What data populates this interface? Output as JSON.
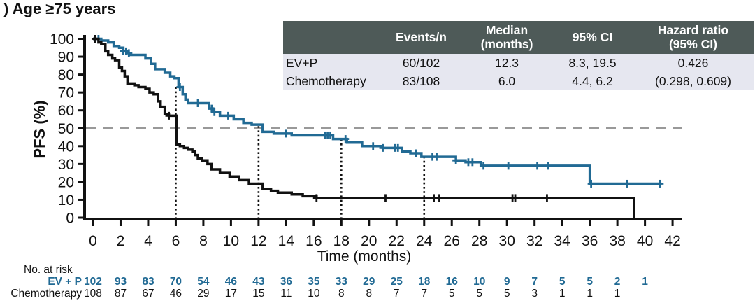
{
  "title": ") Age ≥75 years",
  "colors": {
    "accent": "#216a94",
    "ink": "#111111",
    "table_header_bg": "#4e5a58",
    "table_row_bg": "#e6e7f0",
    "dashed_line": "#999999"
  },
  "summary_table": {
    "headers": [
      "",
      "Events/n",
      "Median\n(months)",
      "95% CI",
      "Hazard ratio\n(95% CI)"
    ],
    "rows": [
      {
        "label": "EV+P",
        "events_n": "60/102",
        "median": "12.3",
        "ci": "8.3, 19.5",
        "hazard_ratio": "0.426"
      },
      {
        "label": "Chemotherapy",
        "events_n": "83/108",
        "median": "6.0",
        "ci": "4.4, 6.2",
        "hazard_ratio": "(0.298, 0.609)"
      }
    ]
  },
  "chart_data": {
    "type": "line",
    "subtype": "kaplan-meier-step",
    "title": "",
    "xlabel": "Time (months)",
    "ylabel": "PFS (%)",
    "xlim": [
      0,
      42
    ],
    "xtick_step": 2,
    "ylim": [
      0,
      100
    ],
    "ytick_step": 10,
    "grid": false,
    "reference_lines": {
      "horizontal_dashed_y": 50,
      "vertical_dotted": [
        {
          "x": 6,
          "top": 73
        },
        {
          "x": 12,
          "top": 52
        },
        {
          "x": 18,
          "top": 44
        },
        {
          "x": 24,
          "top": 34
        }
      ]
    },
    "series": [
      {
        "name": "EV+P",
        "color_key": "accent",
        "steps": [
          [
            0,
            100
          ],
          [
            0.6,
            99
          ],
          [
            1.1,
            98
          ],
          [
            1.5,
            96
          ],
          [
            1.9,
            95
          ],
          [
            2.2,
            93
          ],
          [
            2.5,
            92
          ],
          [
            2.7,
            91
          ],
          [
            3.8,
            89
          ],
          [
            4.2,
            86
          ],
          [
            4.5,
            83
          ],
          [
            5.2,
            81
          ],
          [
            5.6,
            79
          ],
          [
            5.9,
            78
          ],
          [
            6.2,
            73
          ],
          [
            6.5,
            69
          ],
          [
            6.7,
            66
          ],
          [
            6.9,
            64
          ],
          [
            8.4,
            61
          ],
          [
            8.7,
            59
          ],
          [
            9.2,
            57
          ],
          [
            10.2,
            55
          ],
          [
            10.9,
            53
          ],
          [
            11.5,
            52
          ],
          [
            12.3,
            48
          ],
          [
            13.1,
            47
          ],
          [
            14.4,
            46
          ],
          [
            17.4,
            44
          ],
          [
            18.4,
            42
          ],
          [
            19.5,
            40
          ],
          [
            21.0,
            39
          ],
          [
            22.4,
            37
          ],
          [
            23.0,
            36
          ],
          [
            23.8,
            34
          ],
          [
            26.3,
            32
          ],
          [
            27.0,
            31
          ],
          [
            28.1,
            29
          ],
          [
            36.0,
            19
          ],
          [
            41.2,
            19
          ]
        ],
        "censor_times": [
          0.4,
          2.2,
          2.4,
          2.6,
          6.3,
          7.6,
          8.6,
          8.8,
          9.8,
          14.0,
          16.8,
          17.0,
          17.2,
          18.3,
          20.3,
          21.0,
          21.9,
          22.1,
          23.4,
          24.6,
          24.9,
          26.3,
          27.2,
          27.5,
          28.3,
          30.1,
          32.2,
          33.0,
          36.1,
          38.7,
          41.1
        ]
      },
      {
        "name": "Chemotherapy",
        "color_key": "ink",
        "steps": [
          [
            0,
            100
          ],
          [
            0.4,
            98
          ],
          [
            0.6,
            97
          ],
          [
            0.9,
            93
          ],
          [
            1.1,
            91
          ],
          [
            1.4,
            89
          ],
          [
            1.6,
            88
          ],
          [
            1.9,
            84
          ],
          [
            2.1,
            82
          ],
          [
            2.3,
            79
          ],
          [
            2.5,
            75
          ],
          [
            3.0,
            74
          ],
          [
            3.3,
            73
          ],
          [
            3.8,
            72
          ],
          [
            4.1,
            70
          ],
          [
            4.4,
            69
          ],
          [
            4.7,
            65
          ],
          [
            4.9,
            62
          ],
          [
            5.2,
            58
          ],
          [
            5.5,
            57
          ],
          [
            6.05,
            41
          ],
          [
            6.3,
            40
          ],
          [
            6.6,
            39
          ],
          [
            6.9,
            38
          ],
          [
            7.2,
            37
          ],
          [
            7.4,
            35
          ],
          [
            7.6,
            33
          ],
          [
            7.9,
            32
          ],
          [
            8.3,
            30
          ],
          [
            8.6,
            27
          ],
          [
            9.2,
            25
          ],
          [
            9.9,
            23
          ],
          [
            10.6,
            21
          ],
          [
            11.3,
            19
          ],
          [
            12.3,
            16
          ],
          [
            12.9,
            15
          ],
          [
            13.4,
            14
          ],
          [
            14.4,
            13
          ],
          [
            15.2,
            12
          ],
          [
            16.2,
            11
          ],
          [
            39.2,
            11
          ],
          [
            39.2,
            0
          ]
        ],
        "censor_times": [
          0.15,
          5.5,
          16.2,
          21.2,
          24.7,
          25.1,
          30.4,
          30.6,
          32.9
        ]
      }
    ]
  },
  "risk_table": {
    "label": "No. at risk",
    "rows": [
      {
        "name": "EV + P",
        "color_key": "accent",
        "bold": true,
        "start_month": 0,
        "interval": 2,
        "counts": [
          102,
          93,
          83,
          70,
          54,
          46,
          43,
          36,
          35,
          33,
          29,
          25,
          18,
          16,
          10,
          9,
          7,
          5,
          5,
          2,
          1
        ]
      },
      {
        "name": "Chemotherapy",
        "color_key": "ink",
        "bold": false,
        "start_month": 0,
        "interval": 2,
        "counts": [
          108,
          87,
          67,
          46,
          29,
          17,
          15,
          11,
          10,
          8,
          8,
          7,
          7,
          5,
          5,
          5,
          3,
          1,
          1,
          1
        ]
      }
    ]
  }
}
